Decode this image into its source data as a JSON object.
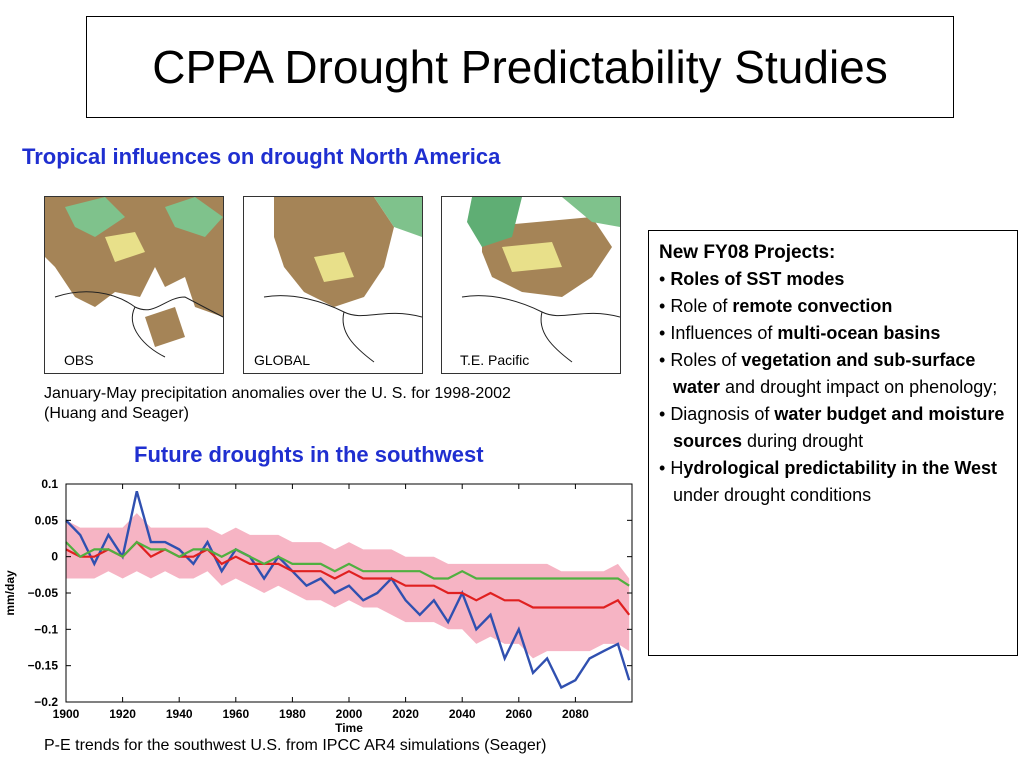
{
  "title": "CPPA Drought Predictability Studies",
  "section1": {
    "heading": "Tropical influences on drought North America",
    "maps": [
      {
        "label": "OBS"
      },
      {
        "label": "GLOBAL"
      },
      {
        "label": "T.E. Pacific"
      }
    ],
    "caption_line1": "January-May precipitation anomalies over the U. S. for 1998-2002",
    "caption_line2": "(Huang and Seager)"
  },
  "section2": {
    "heading": "Future droughts in the southwest",
    "caption": "P-E trends for the southwest U.S. from IPCC AR4 simulations (Seager)"
  },
  "projects": {
    "title": "New FY08 Projects:",
    "items": [
      {
        "prefix": "",
        "bold": "Roles of SST modes",
        "suffix": ""
      },
      {
        "prefix": "Role of ",
        "bold": "remote convection",
        "suffix": ""
      },
      {
        "prefix": "Influences of ",
        "bold": "multi-ocean basins",
        "suffix": ""
      },
      {
        "prefix": "Roles of ",
        "bold": "vegetation and sub-surface water",
        "suffix": " and drought impact on phenology;"
      },
      {
        "prefix": "Diagnosis of ",
        "bold": "water budget and moisture sources",
        "suffix": " during drought"
      },
      {
        "prefix": "H",
        "bold": "ydrological predictability in the West",
        "suffix": " under drought conditions"
      }
    ]
  },
  "colors": {
    "heading": "#1f2fd0",
    "series_blue": "#3050b0",
    "series_red": "#e02020",
    "series_green": "#50b040",
    "band_pink": "#f6b4c4",
    "map_brown": "#a58457",
    "map_green": "#7fc28c"
  },
  "chart_data": {
    "type": "line",
    "xlabel": "Time",
    "ylabel": "mm/day",
    "xlim": [
      1900,
      2100
    ],
    "ylim": [
      -0.2,
      0.1
    ],
    "xticks": [
      1900,
      1920,
      1940,
      1960,
      1980,
      2000,
      2020,
      2040,
      2060,
      2080
    ],
    "yticks": [
      0.1,
      0.05,
      0,
      -0.05,
      -0.1,
      -0.15,
      -0.2
    ],
    "ytick_labels": [
      "0.1",
      "0.05",
      "0",
      "−0.05",
      "−0.1",
      "−0.15",
      "−0.2"
    ],
    "x": [
      1900,
      1905,
      1910,
      1915,
      1920,
      1925,
      1930,
      1935,
      1940,
      1945,
      1950,
      1955,
      1960,
      1965,
      1970,
      1975,
      1980,
      1985,
      1990,
      1995,
      2000,
      2005,
      2010,
      2015,
      2020,
      2025,
      2030,
      2035,
      2040,
      2045,
      2050,
      2055,
      2060,
      2065,
      2070,
      2075,
      2080,
      2085,
      2090,
      2095,
      2099
    ],
    "series": [
      {
        "color": "#3050b0",
        "values": [
          0.05,
          0.03,
          -0.01,
          0.03,
          0.0,
          0.09,
          0.02,
          0.02,
          0.01,
          -0.01,
          0.02,
          -0.02,
          0.01,
          0.0,
          -0.03,
          0.0,
          -0.02,
          -0.04,
          -0.03,
          -0.05,
          -0.04,
          -0.06,
          -0.05,
          -0.03,
          -0.06,
          -0.08,
          -0.06,
          -0.09,
          -0.05,
          -0.1,
          -0.08,
          -0.14,
          -0.1,
          -0.16,
          -0.14,
          -0.18,
          -0.17,
          -0.14,
          -0.13,
          -0.12,
          -0.17
        ]
      },
      {
        "color": "#e02020",
        "values": [
          0.01,
          0.0,
          0.0,
          0.01,
          0.0,
          0.02,
          0.0,
          0.01,
          0.0,
          0.0,
          0.01,
          -0.01,
          0.0,
          -0.01,
          -0.01,
          -0.01,
          -0.02,
          -0.02,
          -0.02,
          -0.03,
          -0.02,
          -0.03,
          -0.03,
          -0.03,
          -0.04,
          -0.04,
          -0.04,
          -0.05,
          -0.05,
          -0.06,
          -0.05,
          -0.06,
          -0.06,
          -0.07,
          -0.07,
          -0.07,
          -0.07,
          -0.07,
          -0.07,
          -0.06,
          -0.08
        ]
      },
      {
        "color": "#50b040",
        "values": [
          0.02,
          0.0,
          0.01,
          0.01,
          0.0,
          0.02,
          0.01,
          0.01,
          0.0,
          0.01,
          0.01,
          0.0,
          0.01,
          0.0,
          -0.01,
          0.0,
          -0.01,
          -0.01,
          -0.01,
          -0.02,
          -0.01,
          -0.02,
          -0.02,
          -0.02,
          -0.02,
          -0.02,
          -0.03,
          -0.03,
          -0.02,
          -0.03,
          -0.03,
          -0.03,
          -0.03,
          -0.03,
          -0.03,
          -0.03,
          -0.03,
          -0.03,
          -0.03,
          -0.03,
          -0.04
        ]
      }
    ],
    "band": {
      "lower": [
        -0.03,
        -0.03,
        -0.03,
        -0.02,
        -0.03,
        -0.02,
        -0.03,
        -0.02,
        -0.03,
        -0.03,
        -0.02,
        -0.04,
        -0.03,
        -0.04,
        -0.05,
        -0.04,
        -0.05,
        -0.06,
        -0.06,
        -0.07,
        -0.06,
        -0.07,
        -0.07,
        -0.08,
        -0.09,
        -0.09,
        -0.09,
        -0.1,
        -0.1,
        -0.12,
        -0.11,
        -0.12,
        -0.12,
        -0.14,
        -0.13,
        -0.13,
        -0.13,
        -0.13,
        -0.12,
        -0.12,
        -0.13
      ],
      "upper": [
        0.05,
        0.04,
        0.04,
        0.04,
        0.04,
        0.06,
        0.04,
        0.04,
        0.04,
        0.04,
        0.04,
        0.03,
        0.04,
        0.03,
        0.03,
        0.03,
        0.02,
        0.02,
        0.02,
        0.01,
        0.02,
        0.01,
        0.01,
        0.01,
        0.0,
        0.0,
        0.0,
        -0.01,
        -0.01,
        -0.01,
        -0.01,
        -0.01,
        -0.01,
        -0.01,
        -0.01,
        -0.02,
        -0.02,
        -0.02,
        -0.02,
        -0.01,
        -0.03
      ]
    }
  }
}
